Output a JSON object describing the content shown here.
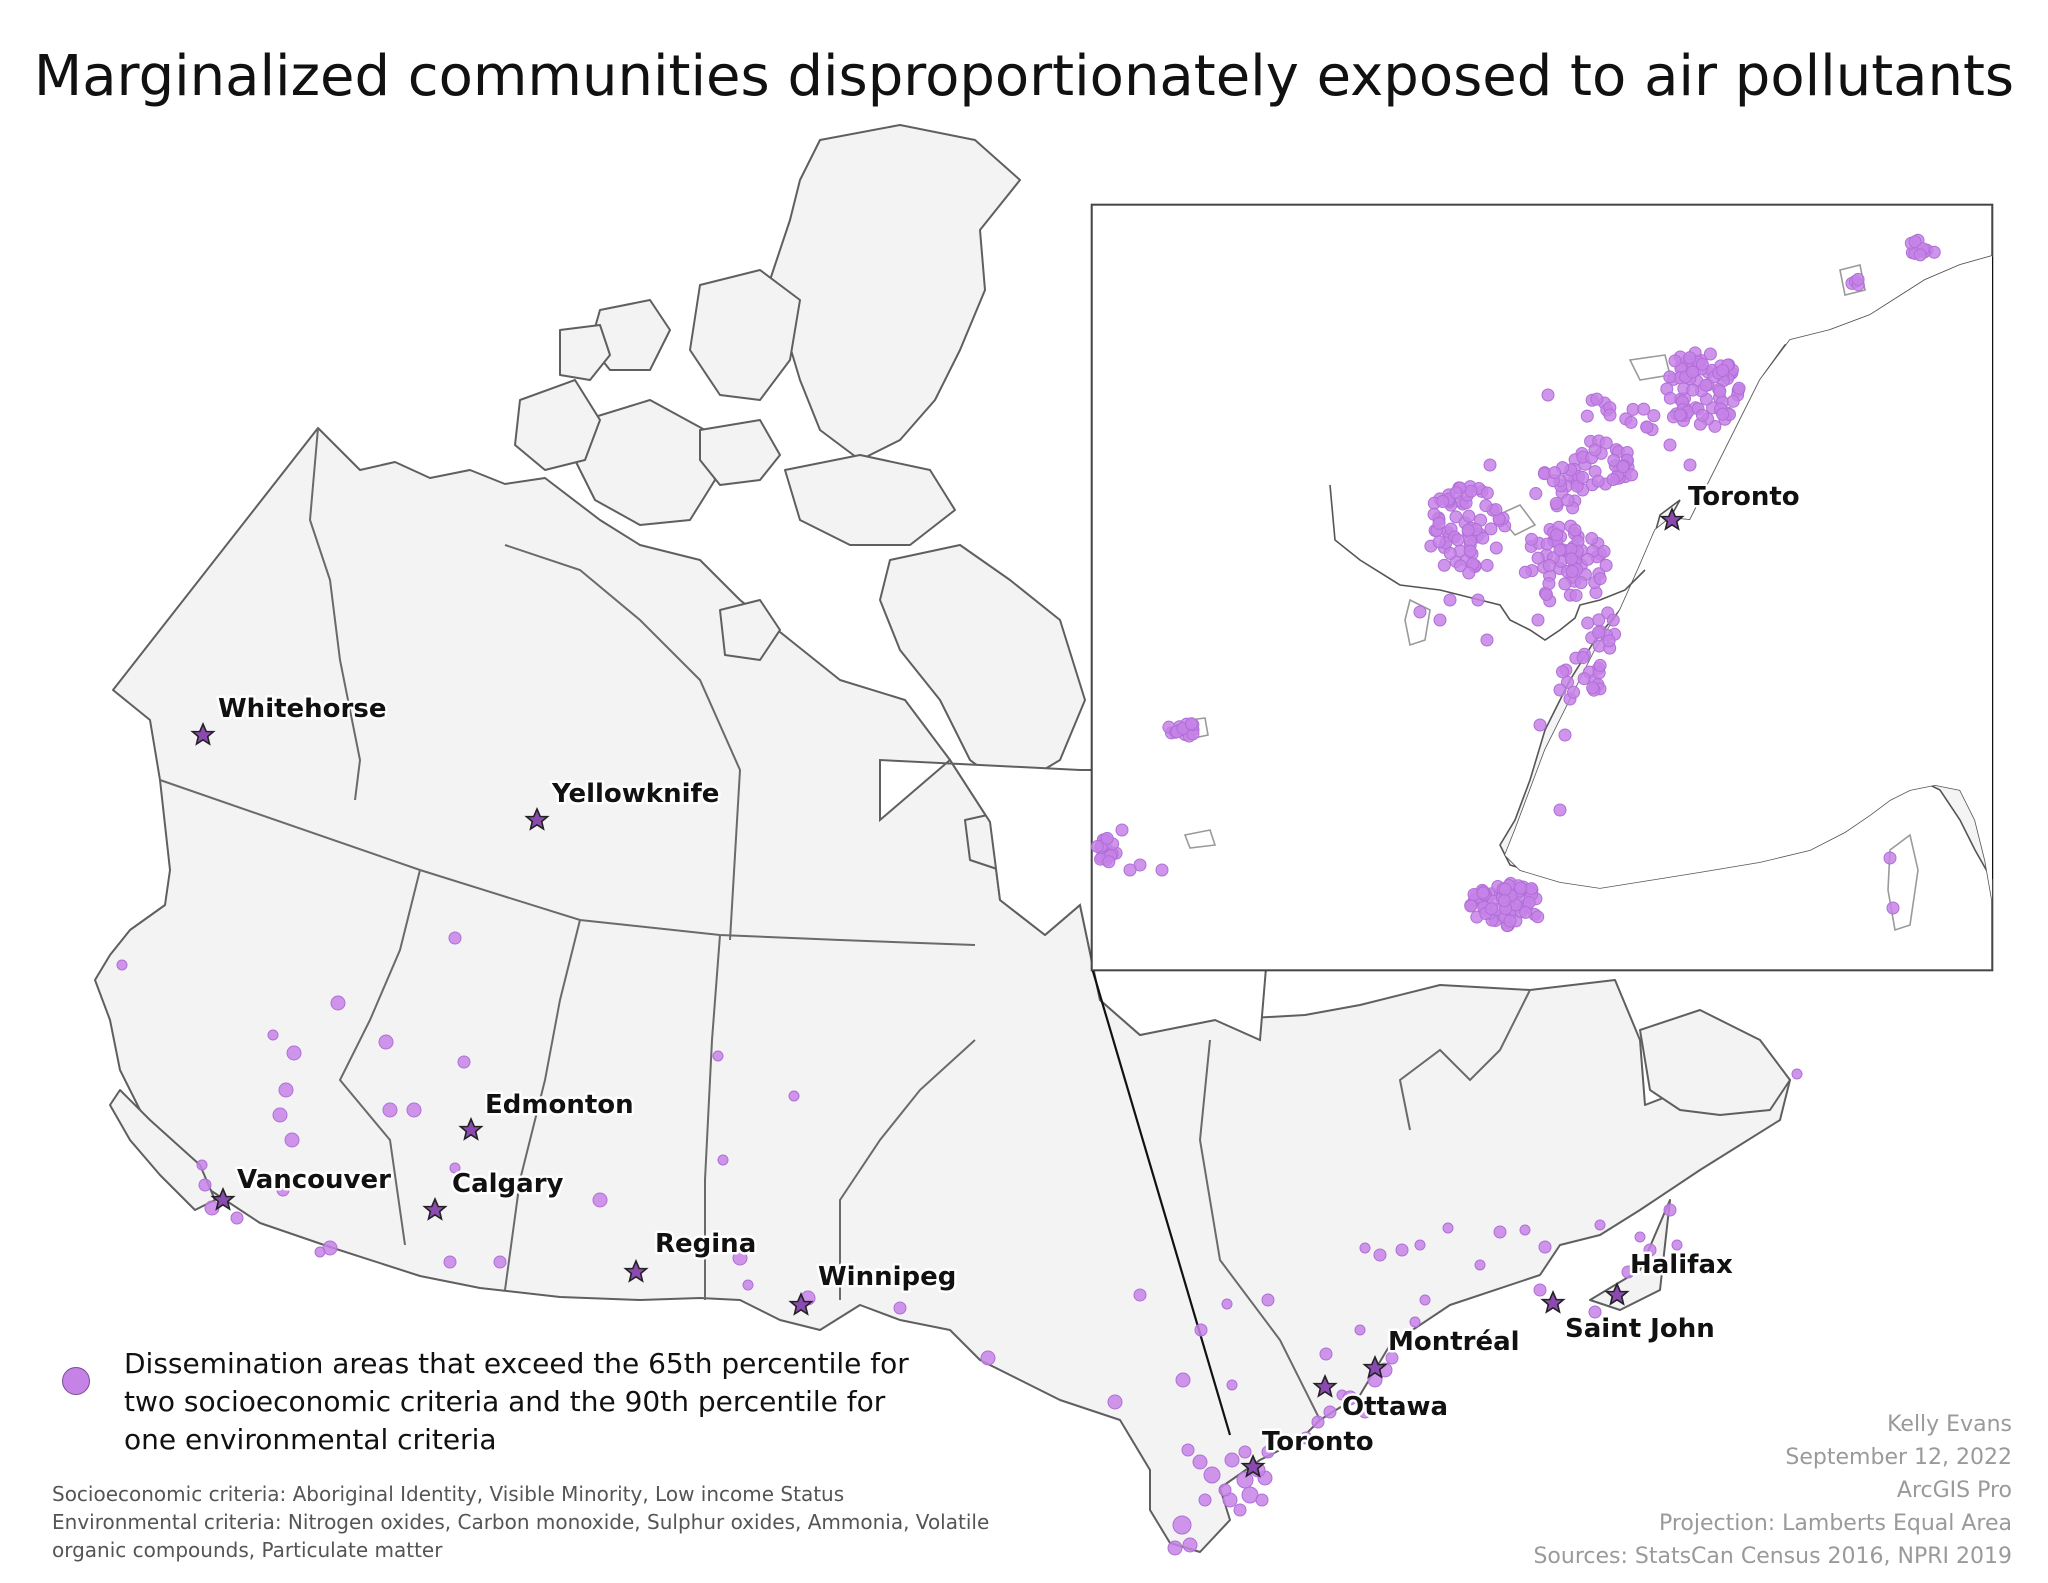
{
  "title": "Marginalized communities disproportionately exposed to air pollutants",
  "colors": {
    "land": "#f3f3f3",
    "boundary": "#5f5f5f",
    "marker": "#c583e8",
    "capital_star": "#8a4ab0",
    "credit_text": "#9a9a9a"
  },
  "cities": {
    "whitehorse": "Whitehorse",
    "yellowknife": "Yellowknife",
    "edmonton": "Edmonton",
    "calgary": "Calgary",
    "vancouver": "Vancouver",
    "regina": "Regina",
    "winnipeg": "Winnipeg",
    "toronto": "Toronto",
    "ottawa": "Ottawa",
    "montreal": "Montréal",
    "saint_john": "Saint John",
    "halifax": "Halifax",
    "inset_toronto": "Toronto"
  },
  "legend": {
    "marker_label": "Dissemination areas that exceed the 65th percentile for two socioeconomic criteria and the 90th percentile for one environmental criteria"
  },
  "criteria": {
    "socioeconomic": "Socioeconomic criteria: Aboriginal Identity, Visible Minority, Low income Status",
    "environmental": "Environmental criteria: Nitrogen oxides, Carbon monoxide, Sulphur oxides, Ammonia, Volatile organic compounds, Particulate matter"
  },
  "credits": {
    "author": "Kelly Evans",
    "date": "September 12, 2022",
    "software": "ArcGIS Pro",
    "projection": "Projection: Lamberts Equal Area",
    "sources": "Sources: StatsCan Census 2016, NPRI 2019"
  }
}
